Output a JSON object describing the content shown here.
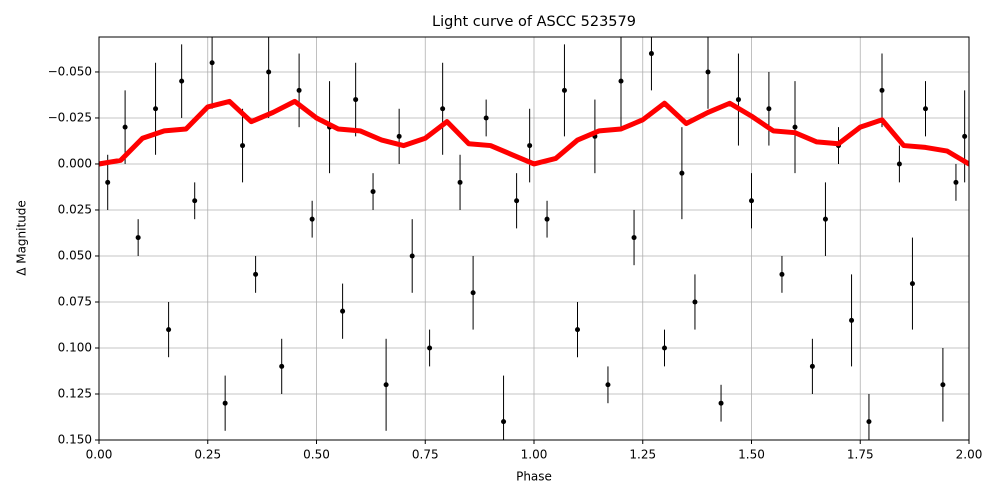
{
  "chart_data": {
    "type": "scatter",
    "title": "Light curve of ASCC 523579",
    "x_label": "Phase",
    "y_label": "Δ Magnitude",
    "xlim": [
      0,
      2
    ],
    "ylim": [
      0.15,
      -0.069
    ],
    "grid": true,
    "xticks": [
      {
        "value": 0,
        "label": "0.00"
      },
      {
        "value": 0.25,
        "label": "0.25"
      },
      {
        "value": 0.5,
        "label": "0.50"
      },
      {
        "value": 0.75,
        "label": "0.75"
      },
      {
        "value": 1,
        "label": "1.00"
      },
      {
        "value": 1.25,
        "label": "1.25"
      },
      {
        "value": 1.5,
        "label": "1.50"
      },
      {
        "value": 1.75,
        "label": "1.75"
      },
      {
        "value": 2,
        "label": "2.00"
      }
    ],
    "yticks": [
      {
        "value": -0.05,
        "label": "−0.050"
      },
      {
        "value": -0.025,
        "label": "−0.025"
      },
      {
        "value": 0,
        "label": "0.000"
      },
      {
        "value": 0.025,
        "label": "0.025"
      },
      {
        "value": 0.05,
        "label": "0.050"
      },
      {
        "value": 0.075,
        "label": "0.075"
      },
      {
        "value": 0.1,
        "label": "0.100"
      },
      {
        "value": 0.125,
        "label": "0.125"
      },
      {
        "value": 0.15,
        "label": "0.150"
      }
    ],
    "points": {
      "color": "#000000",
      "x": [
        0.02,
        0.06,
        0.09,
        0.13,
        0.16,
        0.19,
        0.22,
        0.26,
        0.29,
        0.33,
        0.36,
        0.39,
        0.42,
        0.46,
        0.49,
        0.53,
        0.56,
        0.59,
        0.63,
        0.66,
        0.69,
        0.72,
        0.76,
        0.79,
        0.83,
        0.86,
        0.89,
        0.93,
        0.96,
        0.99,
        1.03,
        1.07,
        1.1,
        1.14,
        1.17,
        1.2,
        1.23,
        1.27,
        1.3,
        1.34,
        1.37,
        1.4,
        1.43,
        1.47,
        1.5,
        1.54,
        1.57,
        1.6,
        1.64,
        1.67,
        1.7,
        1.73,
        1.77,
        1.8,
        1.84,
        1.87,
        1.9,
        1.94,
        1.97,
        1.99
      ],
      "y": [
        0.01,
        -0.02,
        0.04,
        -0.03,
        0.09,
        -0.045,
        0.02,
        -0.055,
        0.13,
        -0.01,
        0.06,
        -0.05,
        0.11,
        -0.04,
        0.03,
        -0.02,
        0.08,
        -0.035,
        0.015,
        0.12,
        -0.015,
        0.05,
        0.1,
        -0.03,
        0.01,
        0.07,
        -0.025,
        0.14,
        0.02,
        -0.01,
        0.03,
        -0.04,
        0.09,
        -0.015,
        0.12,
        -0.045,
        0.04,
        -0.06,
        0.1,
        0.005,
        0.075,
        -0.05,
        0.13,
        -0.035,
        0.02,
        -0.03,
        0.06,
        -0.02,
        0.11,
        0.03,
        -0.01,
        0.085,
        0.14,
        -0.04,
        0.0,
        0.065,
        -0.03,
        0.12,
        0.01,
        -0.015
      ],
      "err": [
        0.015,
        0.02,
        0.01,
        0.025,
        0.015,
        0.02,
        0.01,
        0.025,
        0.015,
        0.02,
        0.01,
        0.025,
        0.015,
        0.02,
        0.01,
        0.025,
        0.015,
        0.02,
        0.01,
        0.025,
        0.015,
        0.02,
        0.01,
        0.025,
        0.015,
        0.02,
        0.01,
        0.025,
        0.015,
        0.02,
        0.01,
        0.025,
        0.015,
        0.02,
        0.01,
        0.025,
        0.015,
        0.02,
        0.01,
        0.025,
        0.015,
        0.02,
        0.01,
        0.025,
        0.015,
        0.02,
        0.01,
        0.025,
        0.015,
        0.02,
        0.01,
        0.025,
        0.015,
        0.02,
        0.01,
        0.025,
        0.015,
        0.02,
        0.01,
        0.025
      ]
    },
    "curve": {
      "color": "#ff0000",
      "x": [
        0,
        0.05,
        0.1,
        0.15,
        0.2,
        0.25,
        0.3,
        0.35,
        0.4,
        0.45,
        0.5,
        0.55,
        0.6,
        0.65,
        0.7,
        0.75,
        0.8,
        0.85,
        0.9,
        0.95,
        1,
        1.05,
        1.1,
        1.15,
        1.2,
        1.25,
        1.3,
        1.35,
        1.4,
        1.45,
        1.5,
        1.55,
        1.6,
        1.65,
        1.7,
        1.75,
        1.8,
        1.85,
        1.9,
        1.95,
        2
      ],
      "y": [
        0.0,
        -0.002,
        -0.014,
        -0.018,
        -0.019,
        -0.031,
        -0.034,
        -0.023,
        -0.028,
        -0.034,
        -0.025,
        -0.019,
        -0.018,
        -0.013,
        -0.01,
        -0.014,
        -0.023,
        -0.011,
        -0.01,
        -0.005,
        0.0,
        -0.003,
        -0.013,
        -0.018,
        -0.019,
        -0.024,
        -0.033,
        -0.022,
        -0.028,
        -0.033,
        -0.026,
        -0.018,
        -0.017,
        -0.012,
        -0.011,
        -0.02,
        -0.024,
        -0.01,
        -0.009,
        -0.007,
        0.0
      ]
    }
  }
}
